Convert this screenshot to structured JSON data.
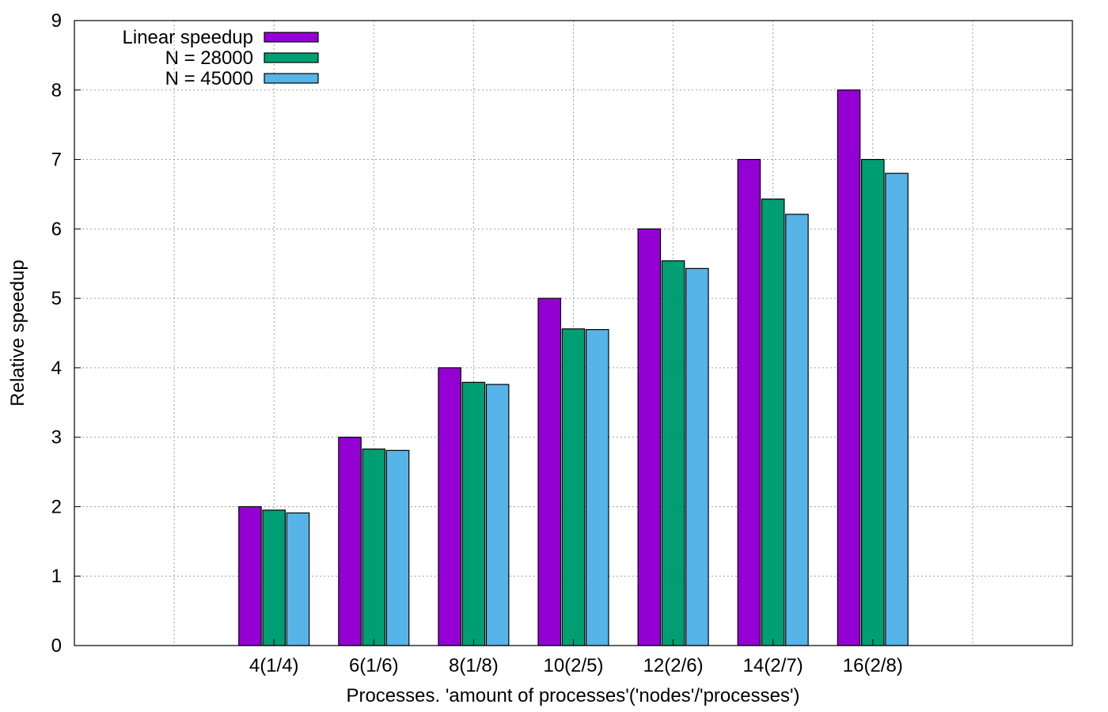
{
  "chart_data": {
    "type": "bar",
    "title": "",
    "xlabel": "Processes. 'amount of processes'('nodes'/'processes')",
    "ylabel": "Relative speedup",
    "categories": [
      "4(1/4)",
      "6(1/6)",
      "8(1/8)",
      "10(2/5)",
      "12(2/6)",
      "14(2/7)",
      "16(2/8)"
    ],
    "category_positions": [
      2,
      3,
      4,
      5,
      6,
      7,
      8
    ],
    "xlim": [
      0,
      10
    ],
    "ylim": [
      0,
      9
    ],
    "yticks": [
      0,
      1,
      2,
      3,
      4,
      5,
      6,
      7,
      8,
      9
    ],
    "grid": true,
    "legend_position": "top-left",
    "series": [
      {
        "name": "Linear speedup",
        "color": "#9400d3",
        "values": [
          2,
          3,
          4,
          5,
          6,
          7,
          8
        ]
      },
      {
        "name": "N = 28000",
        "color": "#009e73",
        "values": [
          1.95,
          2.83,
          3.79,
          4.56,
          5.54,
          6.43,
          7.0
        ]
      },
      {
        "name": "N = 45000",
        "color": "#56b4e9",
        "values": [
          1.91,
          2.81,
          3.76,
          4.55,
          5.43,
          6.21,
          6.8
        ]
      }
    ]
  }
}
